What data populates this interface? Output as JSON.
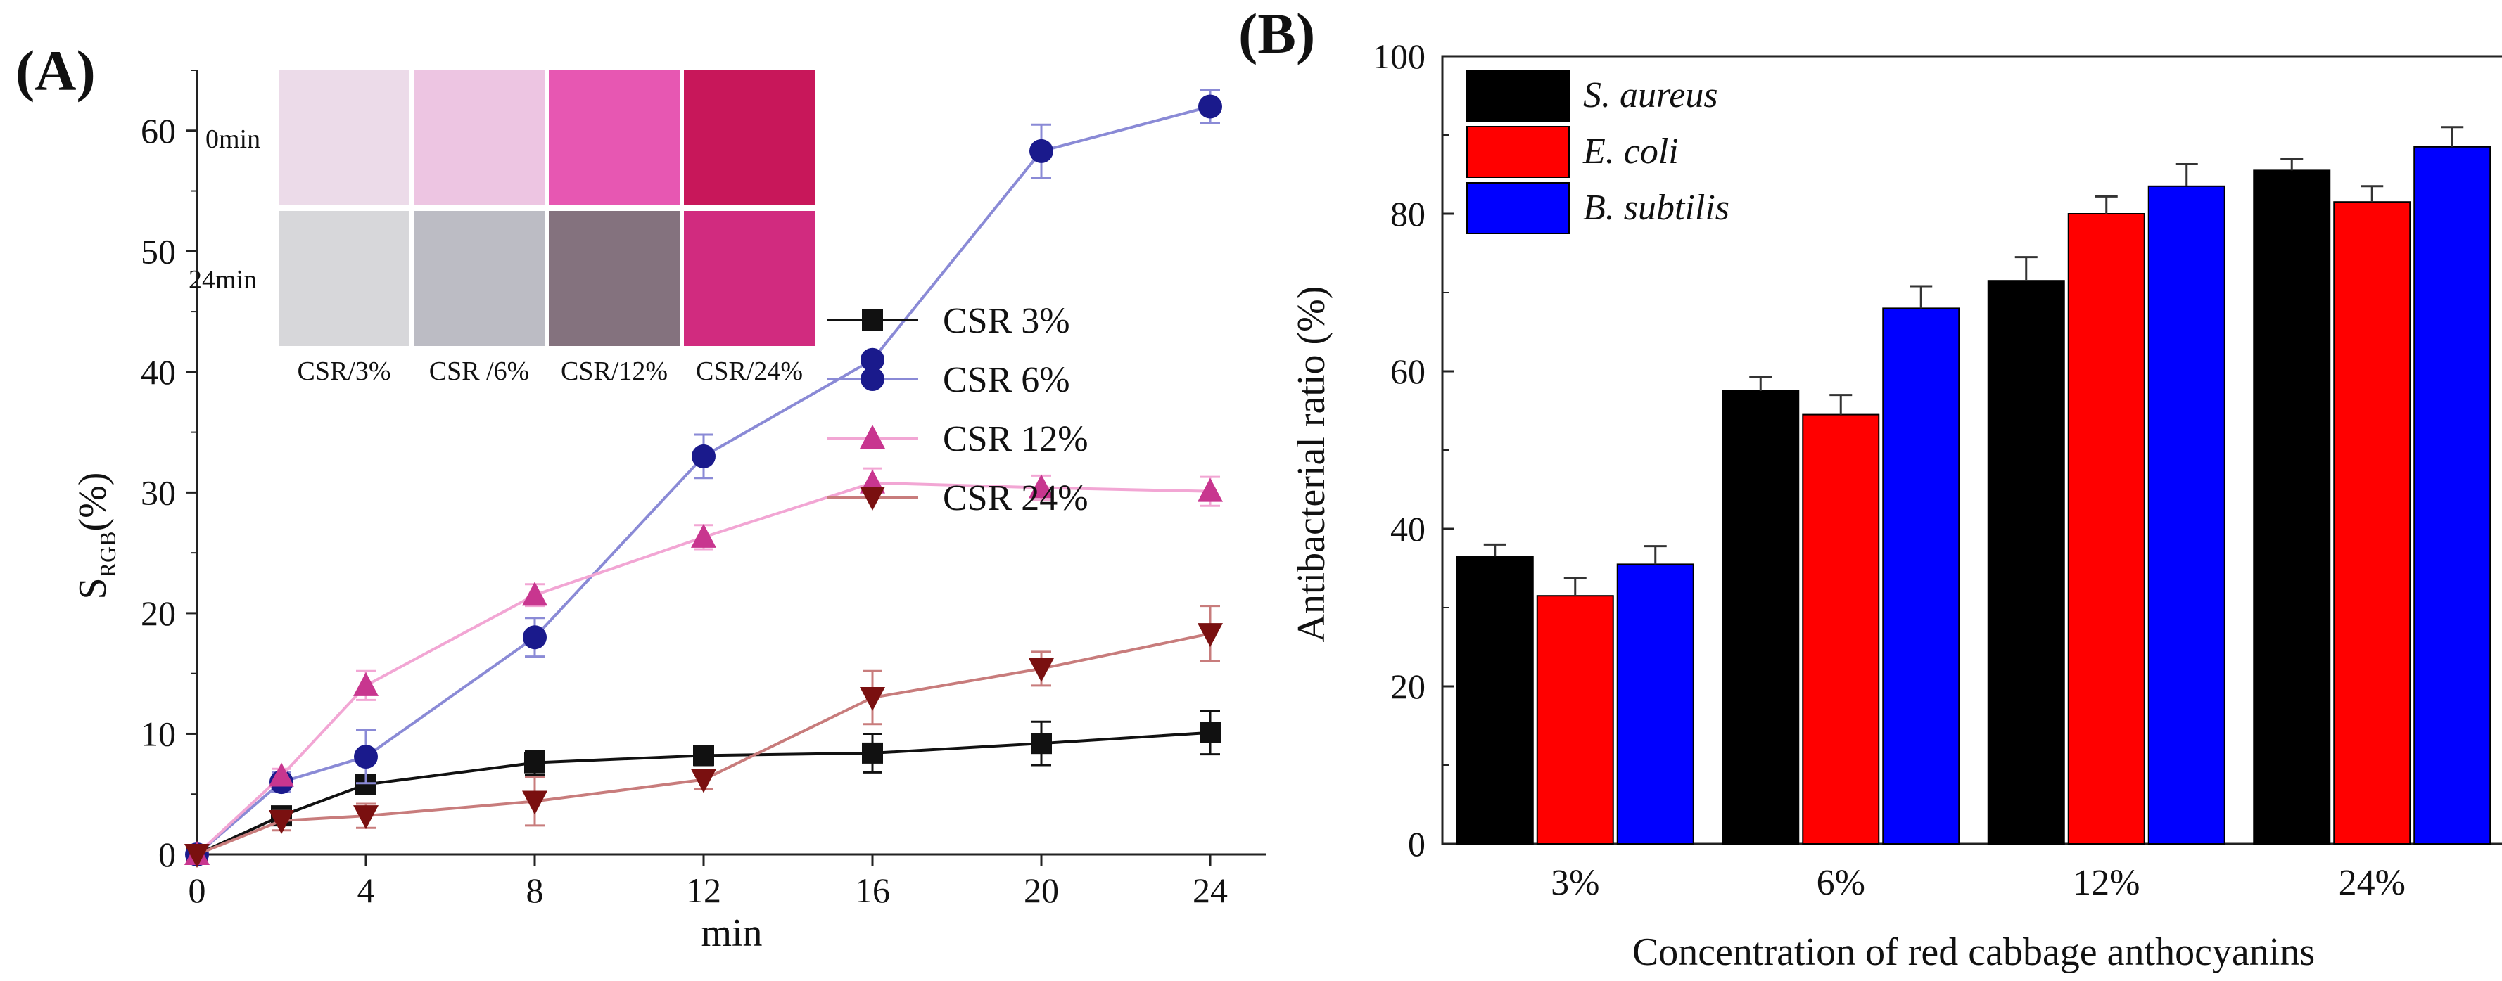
{
  "chart_data": [
    {
      "panel": "(A)",
      "type": "line",
      "xlabel": "min",
      "ylabel_main": "S",
      "ylabel_sub": "RGB",
      "ylabel_suffix": "(%)",
      "xlim": [
        0,
        24
      ],
      "ylim": [
        0,
        65
      ],
      "xticks": [
        0,
        4,
        8,
        12,
        16,
        20,
        24
      ],
      "yticks": [
        0,
        10,
        20,
        30,
        40,
        50,
        60
      ],
      "x": [
        0,
        2,
        4,
        8,
        12,
        16,
        20,
        24
      ],
      "series": [
        {
          "name": "CSR 3%",
          "color": "#111111",
          "marker": "square",
          "values": [
            0,
            3.2,
            5.8,
            7.6,
            8.2,
            8.4,
            9.2,
            10.1
          ],
          "errors": [
            0,
            0.6,
            0.8,
            1.0,
            0.8,
            1.6,
            1.8,
            1.8
          ]
        },
        {
          "name": "CSR 6%",
          "color": "#1a1a8c",
          "line_color": "#8a8ad6",
          "marker": "circle",
          "values": [
            0,
            6.0,
            8.1,
            18.0,
            33.0,
            41.0,
            58.3,
            62.0
          ],
          "errors": [
            0,
            0.8,
            2.2,
            1.6,
            1.8,
            0.5,
            2.2,
            1.4
          ]
        },
        {
          "name": "CSR 12%",
          "color": "#c8368f",
          "line_color": "#f2a6d4",
          "marker": "triangle-up",
          "values": [
            0,
            6.5,
            14.0,
            21.5,
            26.3,
            30.8,
            30.4,
            30.1
          ],
          "errors": [
            0,
            0.6,
            1.2,
            0.9,
            1.0,
            1.2,
            1.0,
            1.2
          ]
        },
        {
          "name": "CSR 24%",
          "color": "#7a1010",
          "line_color": "#c87c7c",
          "marker": "triangle-down",
          "values": [
            0,
            2.8,
            3.2,
            4.4,
            6.2,
            13.0,
            15.4,
            18.3
          ],
          "errors": [
            0,
            0.8,
            1.0,
            2.0,
            0.8,
            2.2,
            1.4,
            2.3
          ]
        }
      ],
      "legend_location": "center-right",
      "inset": {
        "row_labels": [
          "0min",
          "24min"
        ],
        "col_labels": [
          "CSR/3%",
          "CSR /6%",
          "CSR/12%",
          "CSR/24%"
        ],
        "swatch_colors": [
          [
            "#ecdbe9",
            "#edc5e2",
            "#e757b2",
            "#c8175a"
          ],
          [
            "#d7d7da",
            "#bcbcc4",
            "#84727e",
            "#d12b7f"
          ]
        ]
      }
    },
    {
      "panel": "(B)",
      "type": "bar",
      "xlabel": "Concentration of red cabbage anthocyanins",
      "ylabel": "Antibacterial ratio (%)",
      "categories": [
        "3%",
        "6%",
        "12%",
        "24%"
      ],
      "ylim": [
        0,
        100
      ],
      "yticks": [
        0,
        20,
        40,
        60,
        80,
        100
      ],
      "series": [
        {
          "name": "S. aureus",
          "color": "#000000",
          "values": [
            36.5,
            57.5,
            71.5,
            85.5
          ],
          "errors": [
            1.5,
            1.8,
            3.0,
            1.5
          ]
        },
        {
          "name": "E. coli",
          "color": "#ff0000",
          "values": [
            31.5,
            54.5,
            80.0,
            81.5
          ],
          "errors": [
            2.2,
            2.5,
            2.2,
            2.0
          ]
        },
        {
          "name": "B. subtilis",
          "color": "#0000ff",
          "values": [
            35.5,
            68.0,
            83.5,
            88.5
          ],
          "errors": [
            2.3,
            2.8,
            2.8,
            2.5
          ]
        }
      ],
      "legend_location": "top-left"
    }
  ]
}
